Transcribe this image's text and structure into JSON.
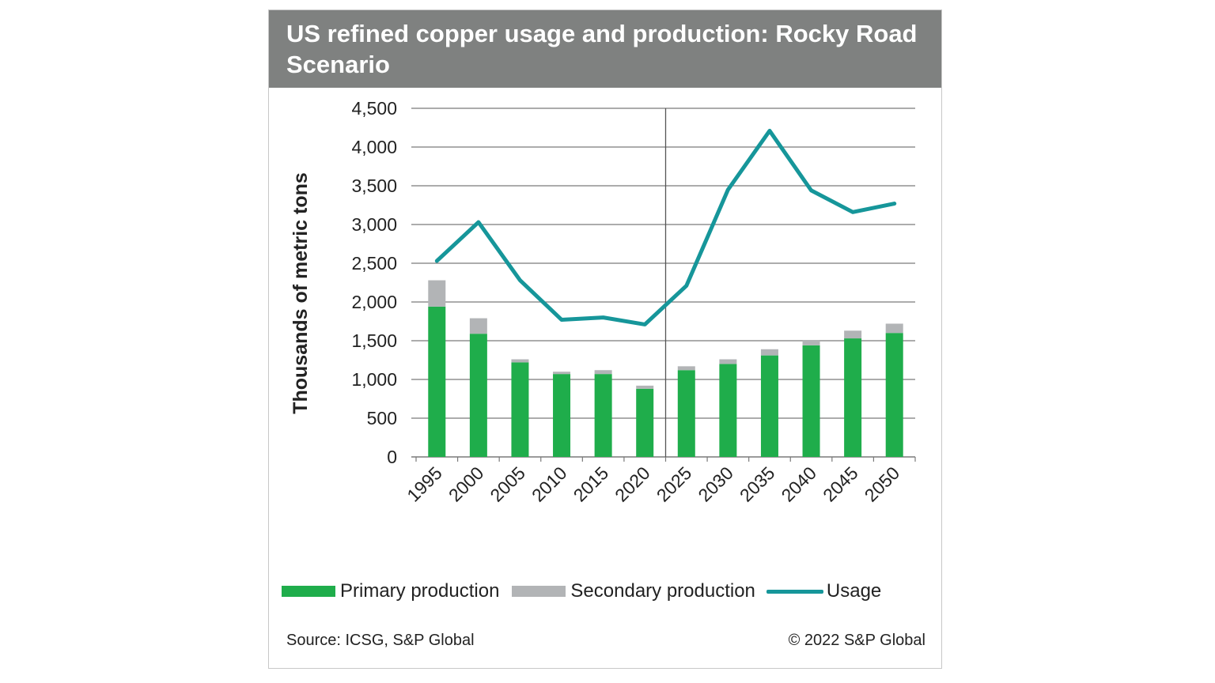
{
  "title": "US refined copper usage and production: Rocky Road Scenario",
  "source": "Source: ICSG, S&P Global",
  "copyright": "© 2022 S&P Global",
  "colors": {
    "title_bg": "#7f8180",
    "primary": "#1fad4b",
    "secondary": "#b2b4b6",
    "usage": "#16969a",
    "grid": "#7a7a7a"
  },
  "chart_data": {
    "type": "bar",
    "title": "US refined copper usage and production: Rocky Road Scenario",
    "xlabel": "",
    "ylabel": "Thousands of metric tons",
    "ylim": [
      0,
      4500
    ],
    "yticks": [
      0,
      500,
      1000,
      1500,
      2000,
      2500,
      3000,
      3500,
      4000,
      4500
    ],
    "ytick_labels": [
      "0",
      "500",
      "1,000",
      "1,500",
      "2,000",
      "2,500",
      "3,000",
      "3,500",
      "4,000",
      "4,500"
    ],
    "categories": [
      "1995",
      "2000",
      "2005",
      "2010",
      "2015",
      "2020",
      "2025",
      "2030",
      "2035",
      "2040",
      "2045",
      "2050"
    ],
    "stacked": true,
    "grid": true,
    "legend_position": "bottom",
    "forecast_divider_after": "2020",
    "series": [
      {
        "name": "Primary production",
        "type": "bar",
        "values": [
          1940,
          1590,
          1220,
          1070,
          1070,
          880,
          1120,
          1200,
          1310,
          1440,
          1530,
          1600
        ]
      },
      {
        "name": "Secondary production",
        "type": "bar",
        "values": [
          340,
          200,
          40,
          30,
          50,
          40,
          50,
          60,
          80,
          70,
          100,
          120
        ]
      },
      {
        "name": "Usage",
        "type": "line",
        "values": [
          2530,
          3030,
          2280,
          1770,
          1800,
          1710,
          2210,
          3450,
          4210,
          3440,
          3160,
          3270
        ]
      }
    ]
  }
}
